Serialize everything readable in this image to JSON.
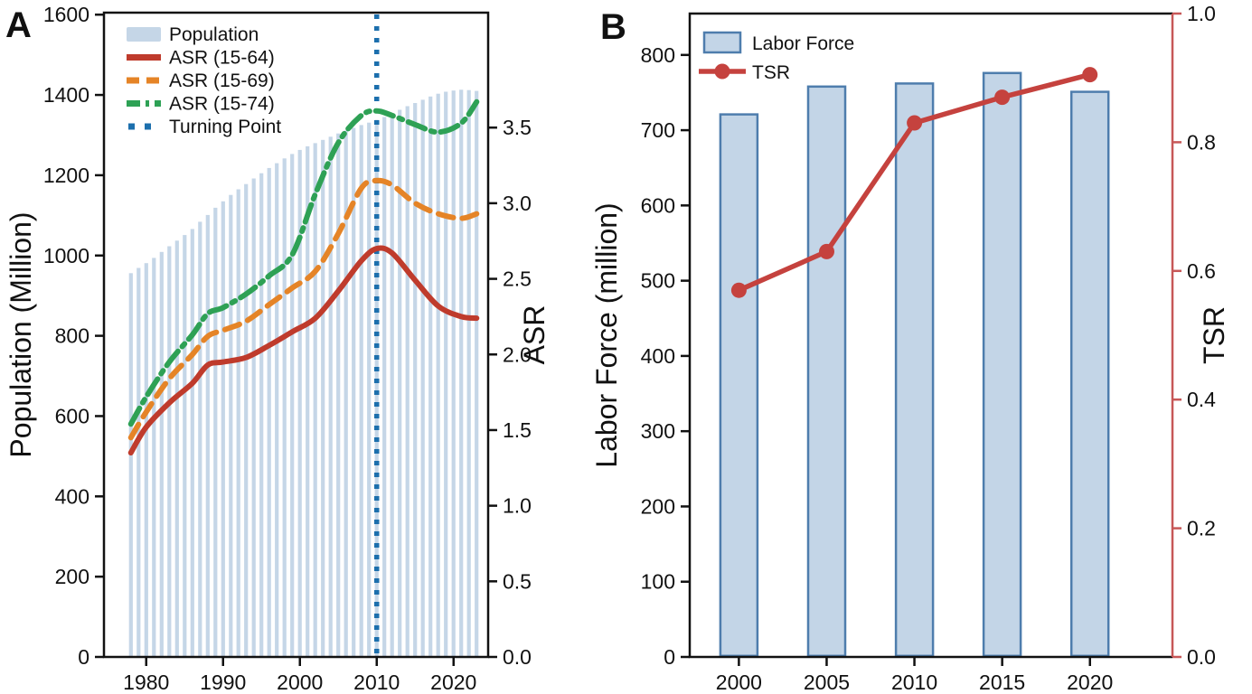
{
  "figure": {
    "panel_a_label": "A",
    "panel_b_label": "B"
  },
  "colors": {
    "text": "#111111",
    "panel_a": {
      "bar_fill": "#c5d6e7",
      "asr_15_64": "#bf3b2c",
      "asr_15_69": "#e58427",
      "asr_15_74": "#2ea155",
      "turning_point": "#1c6fad"
    },
    "panel_b": {
      "bar_fill": "#c3d5e7",
      "bar_border": "#4e7dad",
      "tsr_line": "#c5423e",
      "right_axis": "#c75757"
    }
  },
  "chart_data": [
    {
      "id": "panel_a",
      "type": "bar+line",
      "ylabel_left": "Population (Million)",
      "ylabel_right": "ASR",
      "xticks": [
        1980,
        1990,
        2000,
        2010,
        2020
      ],
      "yticks_left": [
        0,
        200,
        400,
        600,
        800,
        1000,
        1200,
        1400,
        1600
      ],
      "yticks_right": [
        0.0,
        0.5,
        1.0,
        1.5,
        2.0,
        2.5,
        3.0,
        3.5
      ],
      "xlim": [
        1974.5,
        2024.5
      ],
      "ylim_left": [
        0,
        1605
      ],
      "ylim_right": [
        0,
        4.26
      ],
      "legend": [
        "Population",
        "ASR (15-64)",
        "ASR (15-69)",
        "ASR (15-74)",
        "Turning Point"
      ],
      "population": {
        "label": "Population",
        "years": [
          1978,
          1979,
          1980,
          1981,
          1982,
          1983,
          1984,
          1985,
          1986,
          1987,
          1988,
          1989,
          1990,
          1991,
          1992,
          1993,
          1994,
          1995,
          1996,
          1997,
          1998,
          1999,
          2000,
          2001,
          2002,
          2003,
          2004,
          2005,
          2006,
          2007,
          2008,
          2009,
          2010,
          2011,
          2012,
          2013,
          2014,
          2015,
          2016,
          2017,
          2018,
          2019,
          2020,
          2021,
          2022,
          2023
        ],
        "values": [
          956,
          969,
          981,
          994,
          1009,
          1023,
          1037,
          1051,
          1066,
          1084,
          1101,
          1119,
          1135,
          1151,
          1165,
          1178,
          1192,
          1205,
          1218,
          1230,
          1242,
          1253,
          1263,
          1272,
          1280,
          1288,
          1296,
          1304,
          1311,
          1318,
          1325,
          1331,
          1338,
          1345,
          1354,
          1363,
          1372,
          1380,
          1388,
          1396,
          1403,
          1408,
          1411,
          1413,
          1412,
          1410
        ]
      },
      "series": [
        {
          "name": "ASR (15-64)",
          "style": "solid",
          "color_key": "asr_15_64",
          "years": [
            1978,
            1980,
            1983,
            1986,
            1988,
            1990,
            1993,
            1996,
            1999,
            2002,
            2005,
            2008,
            2010,
            2012,
            2015,
            2018,
            2021,
            2023
          ],
          "values": [
            1.35,
            1.52,
            1.68,
            1.81,
            1.93,
            1.95,
            1.98,
            2.06,
            2.15,
            2.24,
            2.42,
            2.62,
            2.7,
            2.67,
            2.49,
            2.32,
            2.25,
            2.24
          ]
        },
        {
          "name": "ASR (15-69)",
          "style": "dashed",
          "color_key": "asr_15_69",
          "years": [
            1978,
            1980,
            1983,
            1986,
            1988,
            1990,
            1993,
            1996,
            1999,
            2002,
            2005,
            2008,
            2010,
            2012,
            2015,
            2018,
            2021,
            2023
          ],
          "values": [
            1.45,
            1.62,
            1.84,
            2.0,
            2.12,
            2.16,
            2.22,
            2.33,
            2.44,
            2.55,
            2.8,
            3.1,
            3.15,
            3.12,
            3.0,
            2.93,
            2.9,
            2.93
          ]
        },
        {
          "name": "ASR (15-74)",
          "style": "dashdot",
          "color_key": "asr_15_74",
          "years": [
            1978,
            1980,
            1983,
            1986,
            1988,
            1990,
            1993,
            1996,
            1999,
            2002,
            2005,
            2008,
            2010,
            2012,
            2015,
            2018,
            2021,
            2023
          ],
          "values": [
            1.54,
            1.72,
            1.95,
            2.13,
            2.27,
            2.31,
            2.4,
            2.52,
            2.66,
            3.06,
            3.4,
            3.58,
            3.61,
            3.58,
            3.52,
            3.47,
            3.53,
            3.67
          ]
        }
      ],
      "turning_point": {
        "label": "Turning Point",
        "year": 2010
      }
    },
    {
      "id": "panel_b",
      "type": "bar+line",
      "ylabel_left": "Labor Force (million)",
      "ylabel_right": "TSR",
      "categories": [
        2000,
        2005,
        2010,
        2015,
        2020
      ],
      "yticks_left": [
        0,
        100,
        200,
        300,
        400,
        500,
        600,
        700,
        800
      ],
      "yticks_right": [
        0.0,
        0.2,
        0.4,
        0.6,
        0.8,
        1.0
      ],
      "xlim": [
        1997.2,
        2024.7
      ],
      "ylim_left": [
        0,
        855
      ],
      "ylim_right": [
        0,
        1.0
      ],
      "legend": [
        "Labor Force",
        "TSR"
      ],
      "bars": {
        "label": "Labor Force",
        "values": [
          721,
          758,
          762,
          776,
          751
        ]
      },
      "line": {
        "label": "TSR",
        "values": [
          0.57,
          0.63,
          0.83,
          0.87,
          0.905
        ]
      }
    }
  ]
}
